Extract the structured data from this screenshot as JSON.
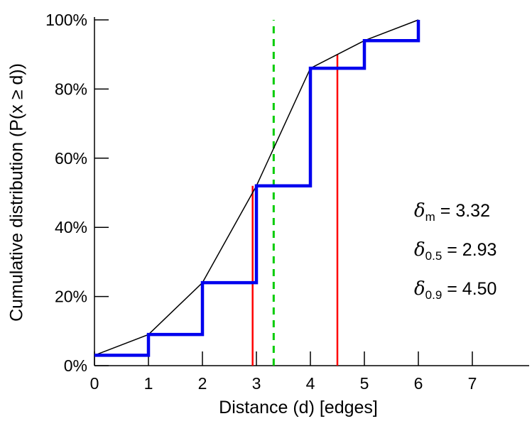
{
  "chart_data": {
    "type": "line",
    "title": "",
    "xlabel": "Distance (d) [edges]",
    "ylabel": "Cumulative distribution (P(x  ≥ d))",
    "xlim": [
      0,
      8
    ],
    "ylim": [
      0,
      100
    ],
    "grid": false,
    "x_ticks": [
      0,
      1,
      2,
      3,
      4,
      5,
      6,
      7
    ],
    "x_tick_labels": [
      "0",
      "1",
      "2",
      "3",
      "4",
      "5",
      "6",
      "7"
    ],
    "y_ticks": [
      0,
      20,
      40,
      60,
      80,
      100
    ],
    "y_tick_labels": [
      "0%",
      "20%",
      "40%",
      "60%",
      "80%",
      "100%"
    ],
    "series": [
      {
        "name": "fitted-curve",
        "type": "line",
        "color": "#000000",
        "width": 1.5,
        "x": [
          0,
          1,
          2,
          3,
          4,
          5,
          6
        ],
        "y": [
          3,
          9,
          24,
          52,
          86,
          94,
          100
        ]
      },
      {
        "name": "empirical-cdf-step",
        "type": "step",
        "color": "#0000ee",
        "width": 4.5,
        "x": [
          0,
          1,
          2,
          3,
          4,
          5,
          6
        ],
        "y": [
          3,
          9,
          24,
          52,
          86,
          94,
          100
        ]
      }
    ],
    "vlines": [
      {
        "name": "mean-line",
        "x": 3.32,
        "y0": 0,
        "y1": 100,
        "color": "#00cc00",
        "dash": "10,8",
        "width": 3
      },
      {
        "name": "median-line",
        "x": 2.93,
        "y0": 0,
        "y1": 52,
        "color": "#ff0000",
        "dash": null,
        "width": 2.5
      },
      {
        "name": "p90-line",
        "x": 4.5,
        "y0": 0,
        "y1": 90,
        "color": "#ff0000",
        "dash": null,
        "width": 2.5
      }
    ],
    "annotations": [
      {
        "symbol": "δ",
        "sub": "m",
        "value": " = 3.32"
      },
      {
        "symbol": "δ",
        "sub": "0.5",
        "value": " = 2.93"
      },
      {
        "symbol": "δ",
        "sub": "0.9",
        "value": " = 4.50"
      }
    ]
  }
}
